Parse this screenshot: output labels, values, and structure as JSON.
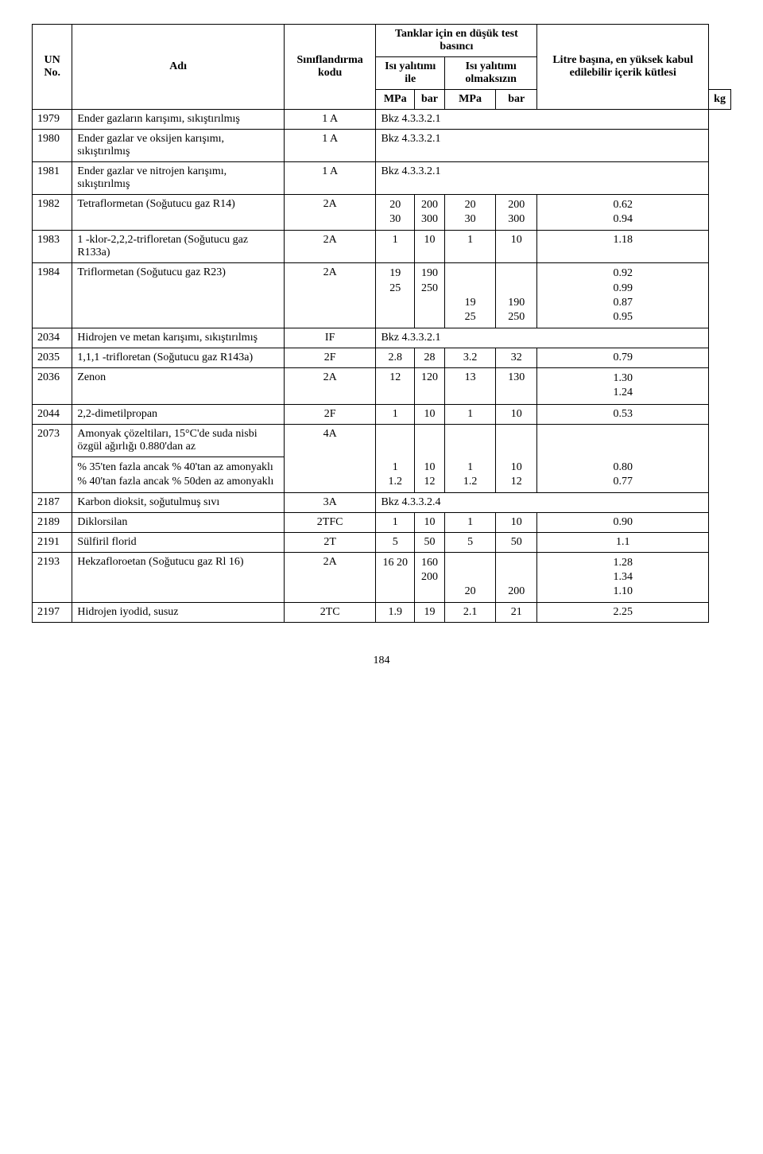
{
  "header": {
    "col1": "UN No.",
    "col2": "Adı",
    "col3": "Sınıflandırma kodu",
    "col4": "Tanklar için en düşük test basıncı",
    "col4a": "Isı yalıtımı ile",
    "col4b": "Isı yalıtımı olmaksızın",
    "col5": "Litre başına, en yüksek kabul edilebilir içerik kütlesi",
    "unit_mpa": "MPa",
    "unit_bar": "bar",
    "unit_kg": "kg"
  },
  "rows": {
    "r1979": {
      "no": "1979",
      "name": "Ender gazların karışımı, sıkıştırılmış",
      "code": "1 A",
      "note": "Bkz 4.3.3.2.1"
    },
    "r1980": {
      "no": "1980",
      "name": "Ender gazlar ve oksijen karışımı, sıkıştırılmış",
      "code": "1 A",
      "note": "Bkz 4.3.3.2.1"
    },
    "r1981": {
      "no": "1981",
      "name": "Ender gazlar ve nitrojen karışımı, sıkıştırılmış",
      "code": "1 A",
      "note": "Bkz 4.3.3.2.1"
    },
    "r1982": {
      "no": "1982",
      "name": "Tetraflormetan  (Soğutucu gaz R14)",
      "code": "2A",
      "mpa1": "20\n30",
      "bar1": "200\n300",
      "mpa2": "20\n30",
      "bar2": "200\n300",
      "kg": "0.62\n0.94"
    },
    "r1983": {
      "no": "1983",
      "name": "1 -klor-2,2,2-trifloretan (Soğutucu gaz R133a)",
      "code": "2A",
      "mpa1": "1",
      "bar1": "10",
      "mpa2": "1",
      "bar2": "10",
      "kg": "1.18"
    },
    "r1984": {
      "no": "1984",
      "name": "Triflormetan  (Soğutucu gaz R23)",
      "code": "2A",
      "mpa1": "19\n25",
      "bar1": "190\n250",
      "mpa2": "\n\n19\n25",
      "bar2": "\n\n190\n250",
      "kg": "0.92\n0.99\n0.87\n0.95"
    },
    "r2034": {
      "no": "2034",
      "name": "Hidrojen ve metan karışımı, sıkıştırılmış",
      "code": "IF",
      "note": "Bkz 4.3.3.2.1"
    },
    "r2035": {
      "no": "2035",
      "name": "1,1,1 -trifloretan  (Soğutucu gaz R143a)",
      "code": "2F",
      "mpa1": "2.8",
      "bar1": "28",
      "mpa2": "3.2",
      "bar2": "32",
      "kg": "0.79"
    },
    "r2036": {
      "no": "2036",
      "name": "Zenon",
      "code": "2A",
      "mpa1": "12",
      "bar1": "120",
      "mpa2": "13",
      "bar2": "130",
      "kg": "1.30\n1.24"
    },
    "r2044": {
      "no": "2044",
      "name": "2,2-dimetilpropan",
      "code": "2F",
      "mpa1": "1",
      "bar1": "10",
      "mpa2": "1",
      "bar2": "10",
      "kg": "0.53"
    },
    "r2073": {
      "no": "2073",
      "name_a": "Amonyak çözeltiları, 15°C'de suda nisbi özgül ağırlığı 0.880'dan az",
      "name_b": "% 35'ten fazla ancak % 40'tan az amonyaklı\n % 40'tan fazla ancak % 50den az amonyaklı",
      "code": "4A",
      "mpa1": "1\n1.2",
      "bar1": "10\n12",
      "mpa2": "1\n1.2",
      "bar2": "10\n12",
      "kg": "0.80\n0.77"
    },
    "r2187": {
      "no": "2187",
      "name": "Karbon dioksit, soğutulmuş sıvı",
      "code": "3A",
      "note": "Bkz 4.3.3.2.4"
    },
    "r2189": {
      "no": "2189",
      "name": "Diklorsilan",
      "code": "2TFC",
      "mpa1": "1",
      "bar1": "10",
      "mpa2": "1",
      "bar2": "10",
      "kg": "0.90"
    },
    "r2191": {
      "no": "2191",
      "name": "Sülfiril florid",
      "code": "2T",
      "mpa1": "5",
      "bar1": "50",
      "mpa2": "5",
      "bar2": "50",
      "kg": "1.1"
    },
    "r2193": {
      "no": "2193",
      "name": "Hekzafloroetan (Soğutucu gaz Rl 16)",
      "code": "2A",
      "mpa1": "16 20",
      "bar1": "160\n200",
      "mpa2": "\n\n20",
      "bar2": "\n\n200",
      "kg": "1.28\n1.34\n1.10"
    },
    "r2197": {
      "no": "2197",
      "name": "Hidrojen iyodid, susuz",
      "code": "2TC",
      "mpa1": "1.9",
      "bar1": "19",
      "mpa2": "2.1",
      "bar2": "21",
      "kg": "2.25"
    }
  },
  "page_number": "184",
  "style": {
    "font_family": "Times New Roman",
    "font_size_pt": 11,
    "border_color": "#000000",
    "background_color": "#ffffff",
    "text_color": "#000000"
  }
}
